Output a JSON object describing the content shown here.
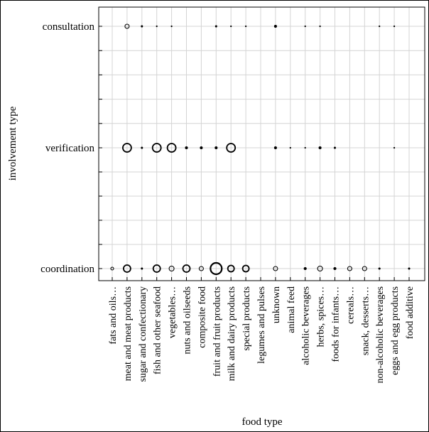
{
  "chart_data": {
    "type": "scatter",
    "xlabel": "food type",
    "ylabel": "involvement type",
    "categories_x": [
      "fats and oils…",
      "meat and meat products",
      "sugar and confectionary",
      "fish and other seafood",
      "vegetables…",
      "nuts and oilseeds",
      "composite food",
      "fruit and fruit products",
      "milk and dairy products",
      "special products",
      "legumes and pulses",
      "unknown",
      "animal feed",
      "alcoholic beverages",
      "herbs, spices…",
      "foods for infants…",
      "cereals…",
      "snack, desserts…",
      "non-alcoholic beverages",
      "eggs and egg products",
      "food additive"
    ],
    "categories_y": [
      "coordination",
      "verification",
      "consultation"
    ],
    "grid": true,
    "marker": "open circle sized by count",
    "points": [
      {
        "x": "fats and oils…",
        "y": "coordination",
        "size": 2
      },
      {
        "x": "meat and meat products",
        "y": "coordination",
        "size": 5
      },
      {
        "x": "sugar and confectionary",
        "y": "coordination",
        "size": 1
      },
      {
        "x": "fish and other seafood",
        "y": "coordination",
        "size": 5
      },
      {
        "x": "vegetables…",
        "y": "coordination",
        "size": 3.5
      },
      {
        "x": "nuts and oilseeds",
        "y": "coordination",
        "size": 5
      },
      {
        "x": "composite food",
        "y": "coordination",
        "size": 3
      },
      {
        "x": "fruit and fruit products",
        "y": "coordination",
        "size": 8
      },
      {
        "x": "milk and dairy products",
        "y": "coordination",
        "size": 4.5
      },
      {
        "x": "special products",
        "y": "coordination",
        "size": 4.5
      },
      {
        "x": "unknown",
        "y": "coordination",
        "size": 3
      },
      {
        "x": "alcoholic beverages",
        "y": "coordination",
        "size": 1.5
      },
      {
        "x": "herbs, spices…",
        "y": "coordination",
        "size": 3.5
      },
      {
        "x": "foods for infants…",
        "y": "coordination",
        "size": 1.5
      },
      {
        "x": "cereals…",
        "y": "coordination",
        "size": 3
      },
      {
        "x": "snack, desserts…",
        "y": "coordination",
        "size": 3
      },
      {
        "x": "non-alcoholic beverages",
        "y": "coordination",
        "size": 1
      },
      {
        "x": "food additive",
        "y": "coordination",
        "size": 1
      },
      {
        "x": "meat and meat products",
        "y": "verification",
        "size": 6
      },
      {
        "x": "sugar and confectionary",
        "y": "verification",
        "size": 1
      },
      {
        "x": "fish and other seafood",
        "y": "verification",
        "size": 6
      },
      {
        "x": "vegetables…",
        "y": "verification",
        "size": 6
      },
      {
        "x": "nuts and oilseeds",
        "y": "verification",
        "size": 1.5
      },
      {
        "x": "composite food",
        "y": "verification",
        "size": 1.5
      },
      {
        "x": "fruit and fruit products",
        "y": "verification",
        "size": 1.5
      },
      {
        "x": "milk and dairy products",
        "y": "verification",
        "size": 6
      },
      {
        "x": "unknown",
        "y": "verification",
        "size": 1.5
      },
      {
        "x": "animal feed",
        "y": "verification",
        "size": 0.5
      },
      {
        "x": "alcoholic beverages",
        "y": "verification",
        "size": 0.5
      },
      {
        "x": "herbs, spices…",
        "y": "verification",
        "size": 1.5
      },
      {
        "x": "foods for infants…",
        "y": "verification",
        "size": 1
      },
      {
        "x": "eggs and egg products",
        "y": "verification",
        "size": 0.5
      },
      {
        "x": "meat and meat products",
        "y": "consultation",
        "size": 3
      },
      {
        "x": "sugar and confectionary",
        "y": "consultation",
        "size": 1
      },
      {
        "x": "fish and other seafood",
        "y": "consultation",
        "size": 0.5
      },
      {
        "x": "vegetables…",
        "y": "consultation",
        "size": 0.5
      },
      {
        "x": "fruit and fruit products",
        "y": "consultation",
        "size": 1
      },
      {
        "x": "milk and dairy products",
        "y": "consultation",
        "size": 0.5
      },
      {
        "x": "special products",
        "y": "consultation",
        "size": 0.5
      },
      {
        "x": "unknown",
        "y": "consultation",
        "size": 1.5
      },
      {
        "x": "alcoholic beverages",
        "y": "consultation",
        "size": 0.5
      },
      {
        "x": "herbs, spices…",
        "y": "consultation",
        "size": 0.5
      },
      {
        "x": "non-alcoholic beverages",
        "y": "consultation",
        "size": 0.5
      },
      {
        "x": "eggs and egg products",
        "y": "consultation",
        "size": 0.5
      }
    ]
  }
}
